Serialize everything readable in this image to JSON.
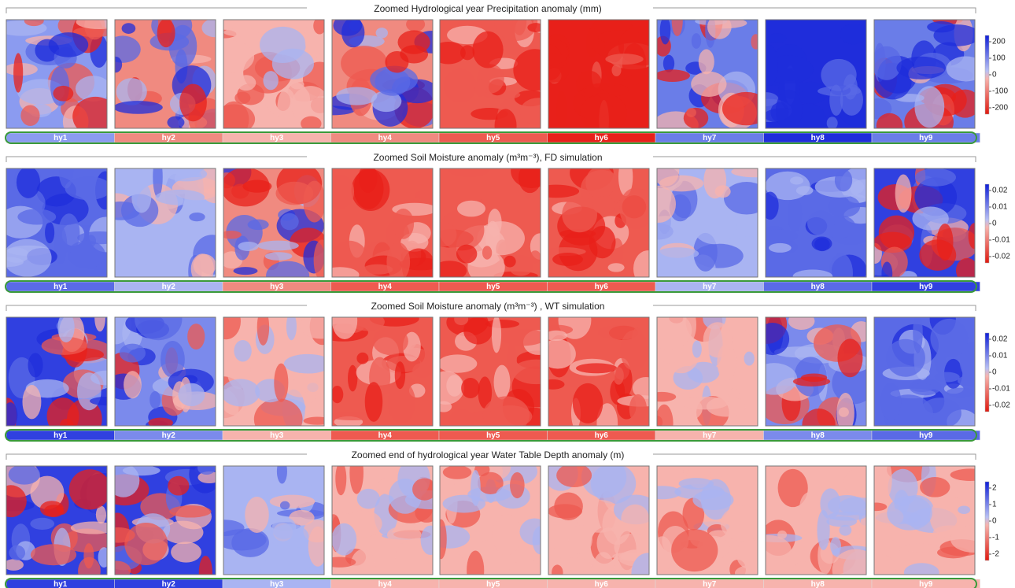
{
  "rows": [
    {
      "title": "Zoomed Hydrological year Precipitation anomaly (mm)",
      "colorbar_ticks": [
        "200",
        "100",
        "0",
        "-100",
        "-200"
      ],
      "labels": [
        "hy1",
        "hy2",
        "hy3",
        "hy4",
        "hy5",
        "hy6",
        "hy7",
        "hy8",
        "hy9"
      ],
      "colors": [
        "#8b9bf0",
        "#f08a80",
        "#f7b3ad",
        "#f08a80",
        "#ee5a50",
        "#e8201a",
        "#6a7de8",
        "#1f2ddb",
        "#6a7de8"
      ]
    },
    {
      "title": "Zoomed Soil Moisture anomaly (m³m⁻³), FD  simulation",
      "colorbar_ticks": [
        "0.02",
        "0.01",
        "0",
        "-0.01",
        "-0.02"
      ],
      "labels": [
        "hy1",
        "hy2",
        "hy3",
        "hy4",
        "hy5",
        "hy6",
        "hy7",
        "hy8",
        "hy9"
      ],
      "colors": [
        "#5a6ae6",
        "#a9b4f2",
        "#f08a80",
        "#ee5a50",
        "#ee5a50",
        "#ee5a50",
        "#a9b4f2",
        "#5a6ae6",
        "#3040e0"
      ]
    },
    {
      "title": "Zoomed Soil Moisture anomaly (m³m⁻³) , WT simulation",
      "colorbar_ticks": [
        "0.02",
        "0.01",
        "0",
        "-0.01",
        "-0.02"
      ],
      "labels": [
        "hy1",
        "hy2",
        "hy3",
        "hy4",
        "hy5",
        "hy6",
        "hy7",
        "hy8",
        "hy9"
      ],
      "colors": [
        "#3040e0",
        "#7b8aec",
        "#f7b3ad",
        "#ee5a50",
        "#ee5a50",
        "#ee5a50",
        "#f7b3ad",
        "#7b8aec",
        "#5a6ae6"
      ]
    },
    {
      "title": "Zoomed end of hydrological year Water Table Depth anomaly (m)",
      "colorbar_ticks": [
        "2",
        "1",
        "0",
        "-1",
        "-2"
      ],
      "labels": [
        "hy1",
        "hy2",
        "hy3",
        "hy4",
        "hy5",
        "hy6",
        "hy7",
        "hy8",
        "hy9"
      ],
      "colors": [
        "#3040e0",
        "#3040e0",
        "#a9b4f2",
        "#f7b3ad",
        "#f7b3ad",
        "#f7b3ad",
        "#f7b3ad",
        "#f7b3ad",
        "#f7b3ad"
      ]
    }
  ]
}
